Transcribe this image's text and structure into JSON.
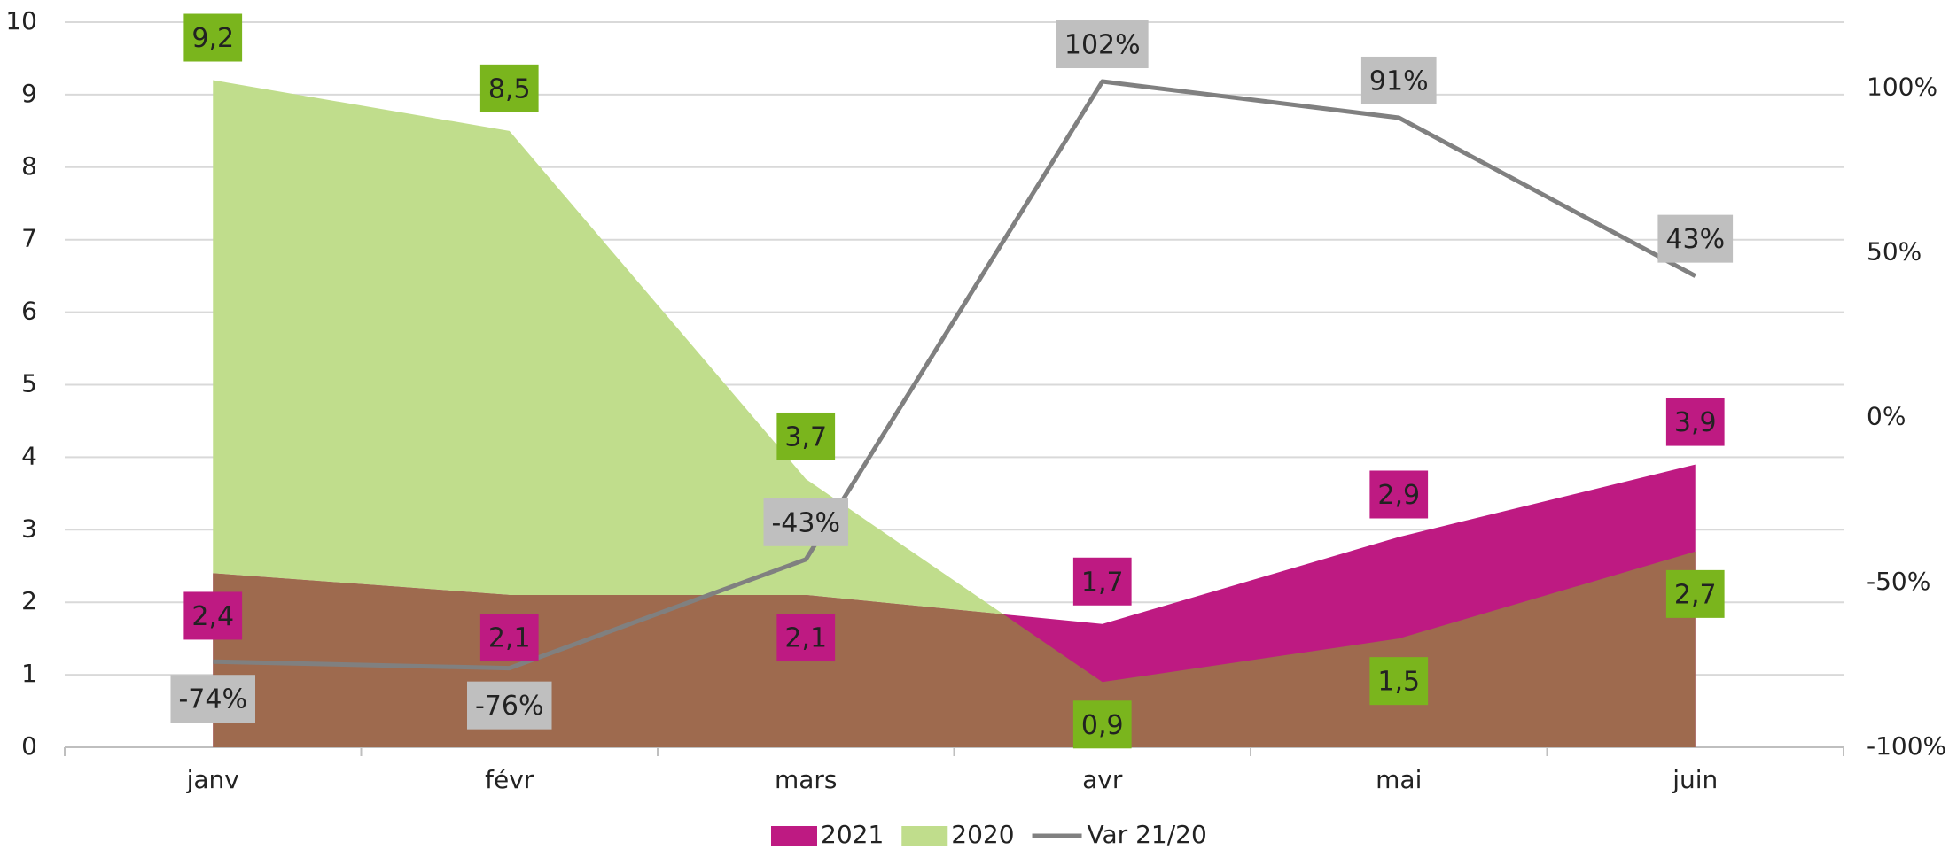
{
  "chart_data": {
    "type": "area",
    "categories": [
      "janv",
      "févr",
      "mars",
      "avr",
      "mai",
      "juin"
    ],
    "series": [
      {
        "name": "2021",
        "color": "#be1a82",
        "values": [
          2.4,
          2.1,
          2.1,
          1.7,
          2.9,
          3.9
        ],
        "value_labels": [
          "2,4",
          "2,1",
          "2,1",
          "1,7",
          "2,9",
          "3,9"
        ]
      },
      {
        "name": "2020",
        "color": "#c0dd8c",
        "label_color": "#7ab51d",
        "values": [
          9.2,
          8.5,
          3.7,
          0.9,
          1.5,
          2.7
        ],
        "value_labels": [
          "9,2",
          "8,5",
          "3,7",
          "0,9",
          "1,5",
          "2,7"
        ]
      },
      {
        "name": "Var 21/20",
        "type": "line",
        "axis": "y2",
        "color": "#808080",
        "label_color": "#bfbfbf",
        "values": [
          -74,
          -76,
          -43,
          102,
          91,
          43
        ],
        "value_labels": [
          "-74%",
          "-76%",
          "-43%",
          "102%",
          "91%",
          "43%"
        ]
      }
    ],
    "overlap_color": "#9e6a4e",
    "ylim": [
      0,
      10
    ],
    "yticks": [
      0,
      1,
      2,
      3,
      4,
      5,
      6,
      7,
      8,
      9,
      10
    ],
    "y2lim": [
      -100,
      120
    ],
    "y2ticks": [
      {
        "value": -100,
        "label": "-100%"
      },
      {
        "value": -50,
        "label": "-50%"
      },
      {
        "value": 0,
        "label": "0%"
      },
      {
        "value": 50,
        "label": "50%"
      },
      {
        "value": 100,
        "label": "100%"
      }
    ],
    "grid": true,
    "legend": "bottom"
  }
}
